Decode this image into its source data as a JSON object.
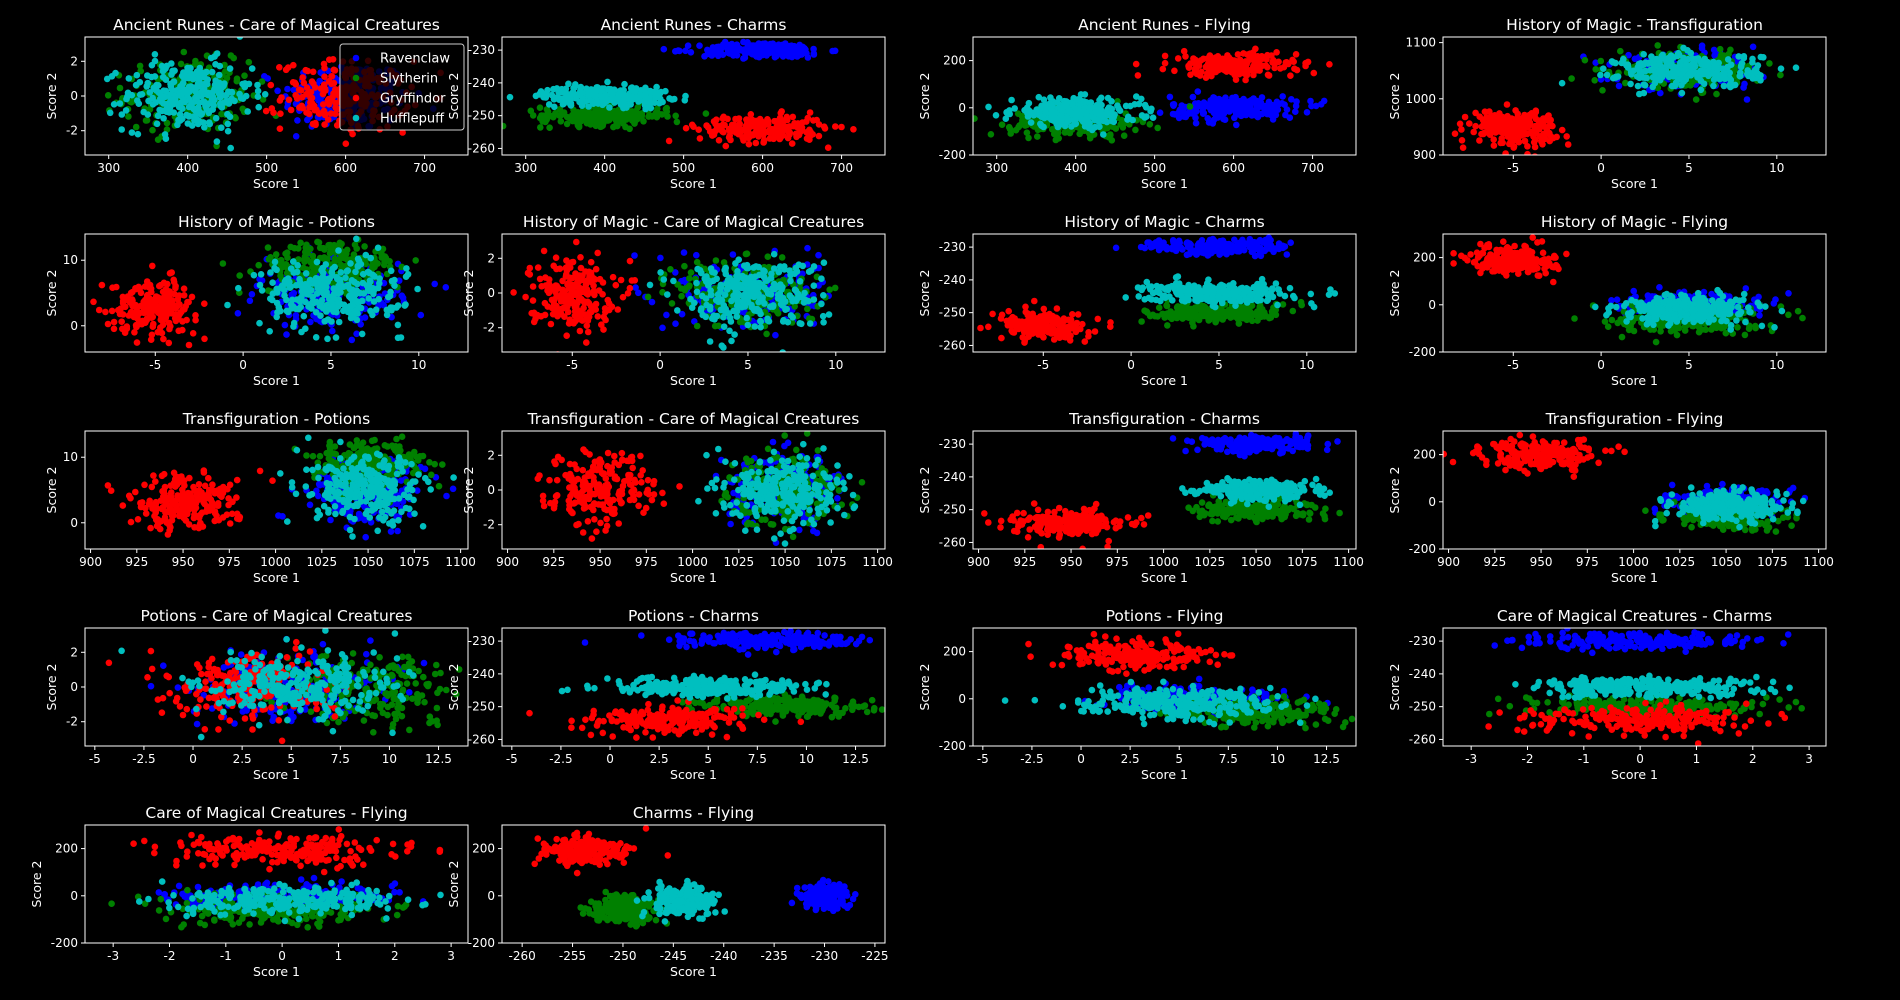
{
  "figure": {
    "background": "#000000",
    "foreground": "#ffffff"
  },
  "legend": {
    "placement": "upper-right of first panel",
    "entries": [
      {
        "name": "Ravenclaw",
        "color": "#0000ff"
      },
      {
        "name": "Slytherin",
        "color": "#008000"
      },
      {
        "name": "Gryffindor",
        "color": "#ff0000"
      },
      {
        "name": "Hufflepuff",
        "color": "#00bfbf"
      }
    ]
  },
  "chart_data": [
    {
      "type": "scatter",
      "title": "Ancient Runes - Care of Magical Creatures",
      "xlabel": "Score 1",
      "ylabel": "Score 2",
      "xlim": [
        270,
        755
      ],
      "ylim": [
        -3.4,
        3.4
      ],
      "xticks": [
        300,
        400,
        500,
        600,
        700
      ],
      "yticks": [
        -2,
        0,
        2
      ],
      "legend": true,
      "clusters": [
        {
          "house": 0,
          "cx": 600,
          "sx": 40,
          "cy": 0,
          "sy": 1,
          "n": 220
        },
        {
          "house": 1,
          "cx": 400,
          "sx": 40,
          "cy": 0,
          "sy": 1,
          "n": 220
        },
        {
          "house": 2,
          "cx": 600,
          "sx": 40,
          "cy": 0,
          "sy": 1,
          "n": 220
        },
        {
          "house": 3,
          "cx": 400,
          "sx": 40,
          "cy": 0,
          "sy": 1,
          "n": 280
        }
      ]
    },
    {
      "type": "scatter",
      "title": "Ancient Runes - Charms",
      "xlabel": "Score 1",
      "ylabel": "Score 2",
      "xlim": [
        270,
        755
      ],
      "ylim": [
        -262,
        -226
      ],
      "xticks": [
        300,
        400,
        500,
        600,
        700
      ],
      "yticks": [
        -260,
        -250,
        -240,
        -230
      ],
      "clusters": [
        {
          "house": 0,
          "cx": 600,
          "sx": 40,
          "cy": -230,
          "sy": 1.2,
          "n": 220
        },
        {
          "house": 1,
          "cx": 400,
          "sx": 40,
          "cy": -250,
          "sy": 1.5,
          "n": 220
        },
        {
          "house": 2,
          "cx": 600,
          "sx": 40,
          "cy": -254,
          "sy": 2,
          "n": 220
        },
        {
          "house": 3,
          "cx": 400,
          "sx": 40,
          "cy": -244,
          "sy": 1.5,
          "n": 280
        }
      ]
    },
    {
      "type": "scatter",
      "title": "Ancient Runes - Flying",
      "xlabel": "Score 1",
      "ylabel": "Score 2",
      "xlim": [
        270,
        755
      ],
      "ylim": [
        -200,
        300
      ],
      "xticks": [
        300,
        400,
        500,
        600,
        700
      ],
      "yticks": [
        -200,
        0,
        200
      ],
      "clusters": [
        {
          "house": 0,
          "cx": 600,
          "sx": 40,
          "cy": 0,
          "sy": 25,
          "n": 220
        },
        {
          "house": 1,
          "cx": 400,
          "sx": 40,
          "cy": -60,
          "sy": 30,
          "n": 220
        },
        {
          "house": 2,
          "cx": 600,
          "sx": 40,
          "cy": 180,
          "sy": 25,
          "n": 220
        },
        {
          "house": 3,
          "cx": 400,
          "sx": 40,
          "cy": -20,
          "sy": 30,
          "n": 280
        }
      ]
    },
    {
      "type": "scatter",
      "title": "History of Magic - Transfiguration",
      "xlabel": "Score 1",
      "ylabel": "Score 2",
      "xlim": [
        -9,
        12.8
      ],
      "ylim": [
        900,
        1110
      ],
      "xticks": [
        -5,
        0,
        5,
        10
      ],
      "yticks": [
        900,
        1000,
        1100
      ],
      "clusters": [
        {
          "house": 0,
          "cx": 5,
          "sx": 2,
          "cy": 1050,
          "sy": 15,
          "n": 220
        },
        {
          "house": 1,
          "cx": 5,
          "sx": 2,
          "cy": 1050,
          "sy": 15,
          "n": 220
        },
        {
          "house": 2,
          "cx": -5,
          "sx": 1.2,
          "cy": 950,
          "sy": 15,
          "n": 220
        },
        {
          "house": 3,
          "cx": 5,
          "sx": 2,
          "cy": 1050,
          "sy": 15,
          "n": 280
        }
      ]
    },
    {
      "type": "scatter",
      "title": "History of Magic - Potions",
      "xlabel": "Score 1",
      "ylabel": "Score 2",
      "xlim": [
        -9,
        12.8
      ],
      "ylim": [
        -4,
        14
      ],
      "xticks": [
        -5,
        0,
        5,
        10
      ],
      "yticks": [
        0,
        10
      ],
      "clusters": [
        {
          "house": 0,
          "cx": 5,
          "sx": 2,
          "cy": 5,
          "sy": 2.5,
          "n": 220
        },
        {
          "house": 1,
          "cx": 5,
          "sx": 2,
          "cy": 9,
          "sy": 2,
          "n": 220
        },
        {
          "house": 2,
          "cx": -5,
          "sx": 1.2,
          "cy": 3,
          "sy": 2,
          "n": 220
        },
        {
          "house": 3,
          "cx": 5,
          "sx": 2,
          "cy": 5,
          "sy": 2.5,
          "n": 280
        }
      ]
    },
    {
      "type": "scatter",
      "title": "History of Magic - Care of Magical Creatures",
      "xlabel": "Score 1",
      "ylabel": "Score 2",
      "xlim": [
        -9,
        12.8
      ],
      "ylim": [
        -3.4,
        3.4
      ],
      "xticks": [
        -5,
        0,
        5,
        10
      ],
      "yticks": [
        -2,
        0,
        2
      ],
      "clusters": [
        {
          "house": 0,
          "cx": 5,
          "sx": 2,
          "cy": 0,
          "sy": 1,
          "n": 220
        },
        {
          "house": 1,
          "cx": 5,
          "sx": 2,
          "cy": 0,
          "sy": 1,
          "n": 220
        },
        {
          "house": 2,
          "cx": -5,
          "sx": 1.2,
          "cy": 0,
          "sy": 1,
          "n": 220
        },
        {
          "house": 3,
          "cx": 5,
          "sx": 2,
          "cy": 0,
          "sy": 1,
          "n": 280
        }
      ]
    },
    {
      "type": "scatter",
      "title": "History of Magic - Charms",
      "xlabel": "Score 1",
      "ylabel": "Score 2",
      "xlim": [
        -9,
        12.8
      ],
      "ylim": [
        -262,
        -226
      ],
      "xticks": [
        -5,
        0,
        5,
        10
      ],
      "yticks": [
        -260,
        -250,
        -240,
        -230
      ],
      "clusters": [
        {
          "house": 0,
          "cx": 5,
          "sx": 2,
          "cy": -230,
          "sy": 1.2,
          "n": 220
        },
        {
          "house": 1,
          "cx": 5,
          "sx": 2,
          "cy": -250,
          "sy": 1.5,
          "n": 220
        },
        {
          "house": 2,
          "cx": -5,
          "sx": 1.2,
          "cy": -254,
          "sy": 2,
          "n": 220
        },
        {
          "house": 3,
          "cx": 5,
          "sx": 2,
          "cy": -244,
          "sy": 1.5,
          "n": 280
        }
      ]
    },
    {
      "type": "scatter",
      "title": "History of Magic - Flying",
      "xlabel": "Score 1",
      "ylabel": "Score 2",
      "xlim": [
        -9,
        12.8
      ],
      "ylim": [
        -200,
        300
      ],
      "xticks": [
        -5,
        0,
        5,
        10
      ],
      "yticks": [
        -200,
        0,
        200
      ],
      "clusters": [
        {
          "house": 0,
          "cx": 5,
          "sx": 2,
          "cy": 0,
          "sy": 25,
          "n": 220
        },
        {
          "house": 1,
          "cx": 5,
          "sx": 2,
          "cy": -60,
          "sy": 30,
          "n": 220
        },
        {
          "house": 2,
          "cx": -5,
          "sx": 1.2,
          "cy": 190,
          "sy": 30,
          "n": 220
        },
        {
          "house": 3,
          "cx": 5,
          "sx": 2,
          "cy": -20,
          "sy": 30,
          "n": 280
        }
      ]
    },
    {
      "type": "scatter",
      "title": "Transfiguration - Potions",
      "xlabel": "Score 1",
      "ylabel": "Score 2",
      "xlim": [
        897,
        1104
      ],
      "ylim": [
        -4,
        14
      ],
      "xticks": [
        900,
        925,
        950,
        975,
        1000,
        1025,
        1050,
        1075,
        1100
      ],
      "yticks": [
        0,
        10
      ],
      "clusters": [
        {
          "house": 0,
          "cx": 1050,
          "sx": 15,
          "cy": 5,
          "sy": 2.5,
          "n": 220
        },
        {
          "house": 1,
          "cx": 1050,
          "sx": 15,
          "cy": 9,
          "sy": 2,
          "n": 220
        },
        {
          "house": 2,
          "cx": 950,
          "sx": 15,
          "cy": 3,
          "sy": 2,
          "n": 220
        },
        {
          "house": 3,
          "cx": 1050,
          "sx": 15,
          "cy": 5,
          "sy": 2.5,
          "n": 280
        }
      ]
    },
    {
      "type": "scatter",
      "title": "Transfiguration - Care of Magical Creatures",
      "xlabel": "Score 1",
      "ylabel": "Score 2",
      "xlim": [
        897,
        1104
      ],
      "ylim": [
        -3.4,
        3.4
      ],
      "xticks": [
        900,
        925,
        950,
        975,
        1000,
        1025,
        1050,
        1075,
        1100
      ],
      "yticks": [
        -2,
        0,
        2
      ],
      "clusters": [
        {
          "house": 0,
          "cx": 1050,
          "sx": 15,
          "cy": 0,
          "sy": 1,
          "n": 220
        },
        {
          "house": 1,
          "cx": 1050,
          "sx": 15,
          "cy": 0,
          "sy": 1,
          "n": 220
        },
        {
          "house": 2,
          "cx": 950,
          "sx": 15,
          "cy": 0,
          "sy": 1,
          "n": 220
        },
        {
          "house": 3,
          "cx": 1050,
          "sx": 15,
          "cy": 0,
          "sy": 1,
          "n": 280
        }
      ]
    },
    {
      "type": "scatter",
      "title": "Transfiguration - Charms",
      "xlabel": "Score 1",
      "ylabel": "Score 2",
      "xlim": [
        897,
        1104
      ],
      "ylim": [
        -262,
        -226
      ],
      "xticks": [
        900,
        925,
        950,
        975,
        1000,
        1025,
        1050,
        1075,
        1100
      ],
      "yticks": [
        -260,
        -250,
        -240,
        -230
      ],
      "clusters": [
        {
          "house": 0,
          "cx": 1050,
          "sx": 15,
          "cy": -230,
          "sy": 1.2,
          "n": 220
        },
        {
          "house": 1,
          "cx": 1050,
          "sx": 15,
          "cy": -250,
          "sy": 1.5,
          "n": 220
        },
        {
          "house": 2,
          "cx": 950,
          "sx": 15,
          "cy": -254,
          "sy": 2,
          "n": 220
        },
        {
          "house": 3,
          "cx": 1050,
          "sx": 15,
          "cy": -244,
          "sy": 1.5,
          "n": 280
        }
      ]
    },
    {
      "type": "scatter",
      "title": "Transfiguration - Flying",
      "xlabel": "Score 1",
      "ylabel": "Score 2",
      "xlim": [
        897,
        1104
      ],
      "ylim": [
        -200,
        300
      ],
      "xticks": [
        900,
        925,
        950,
        975,
        1000,
        1025,
        1050,
        1075,
        1100
      ],
      "yticks": [
        -200,
        0,
        200
      ],
      "clusters": [
        {
          "house": 0,
          "cx": 1050,
          "sx": 15,
          "cy": 0,
          "sy": 25,
          "n": 220
        },
        {
          "house": 1,
          "cx": 1050,
          "sx": 15,
          "cy": -60,
          "sy": 30,
          "n": 220
        },
        {
          "house": 2,
          "cx": 950,
          "sx": 15,
          "cy": 200,
          "sy": 30,
          "n": 220
        },
        {
          "house": 3,
          "cx": 1050,
          "sx": 15,
          "cy": -20,
          "sy": 30,
          "n": 280
        }
      ]
    },
    {
      "type": "scatter",
      "title": "Potions - Care of Magical Creatures",
      "xlabel": "Score 1",
      "ylabel": "Score 2",
      "xlim": [
        -5.5,
        14
      ],
      "ylim": [
        -3.4,
        3.4
      ],
      "xticks": [
        -5,
        -2.5,
        0,
        2.5,
        5,
        7.5,
        10,
        12.5
      ],
      "yticks": [
        -2,
        0,
        2
      ],
      "clusters": [
        {
          "house": 0,
          "cx": 5,
          "sx": 2.5,
          "cy": 0,
          "sy": 1,
          "n": 220
        },
        {
          "house": 1,
          "cx": 9,
          "sx": 2,
          "cy": 0,
          "sy": 1,
          "n": 220
        },
        {
          "house": 2,
          "cx": 3,
          "sx": 2,
          "cy": 0,
          "sy": 1,
          "n": 220
        },
        {
          "house": 3,
          "cx": 5,
          "sx": 2.5,
          "cy": 0,
          "sy": 1,
          "n": 280
        }
      ]
    },
    {
      "type": "scatter",
      "title": "Potions - Charms",
      "xlabel": "Score 1",
      "ylabel": "Score 2",
      "xlim": [
        -5.5,
        14
      ],
      "ylim": [
        -262,
        -226
      ],
      "xticks": [
        -5,
        -2.5,
        0,
        2.5,
        5,
        7.5,
        10,
        12.5
      ],
      "yticks": [
        -260,
        -250,
        -240,
        -230
      ],
      "clusters": [
        {
          "house": 0,
          "cx": 8,
          "sx": 2.5,
          "cy": -230,
          "sy": 1.2,
          "n": 220
        },
        {
          "house": 1,
          "cx": 9,
          "sx": 2,
          "cy": -250,
          "sy": 1.5,
          "n": 220
        },
        {
          "house": 2,
          "cx": 3,
          "sx": 2,
          "cy": -254,
          "sy": 2,
          "n": 220
        },
        {
          "house": 3,
          "cx": 5,
          "sx": 2.5,
          "cy": -244,
          "sy": 1.5,
          "n": 280
        }
      ]
    },
    {
      "type": "scatter",
      "title": "Potions - Flying",
      "xlabel": "Score 1",
      "ylabel": "Score 2",
      "xlim": [
        -5.5,
        14
      ],
      "ylim": [
        -200,
        300
      ],
      "xticks": [
        -5,
        -2.5,
        0,
        2.5,
        5,
        7.5,
        10,
        12.5
      ],
      "yticks": [
        -200,
        0,
        200
      ],
      "clusters": [
        {
          "house": 0,
          "cx": 6,
          "sx": 2.5,
          "cy": 0,
          "sy": 25,
          "n": 220
        },
        {
          "house": 1,
          "cx": 9,
          "sx": 2,
          "cy": -60,
          "sy": 30,
          "n": 220
        },
        {
          "house": 2,
          "cx": 3,
          "sx": 2,
          "cy": 190,
          "sy": 30,
          "n": 220
        },
        {
          "house": 3,
          "cx": 5,
          "sx": 2.5,
          "cy": -20,
          "sy": 30,
          "n": 280
        }
      ]
    },
    {
      "type": "scatter",
      "title": "Care of Magical Creatures - Charms",
      "xlabel": "Score 1",
      "ylabel": "Score 2",
      "xlim": [
        -3.5,
        3.3
      ],
      "ylim": [
        -262,
        -226
      ],
      "xticks": [
        -3,
        -2,
        -1,
        0,
        1,
        2,
        3
      ],
      "yticks": [
        -260,
        -250,
        -240,
        -230
      ],
      "clusters": [
        {
          "house": 0,
          "cx": 0,
          "sx": 1,
          "cy": -230,
          "sy": 1.2,
          "n": 220
        },
        {
          "house": 1,
          "cx": 0,
          "sx": 1,
          "cy": -250,
          "sy": 1.5,
          "n": 220
        },
        {
          "house": 2,
          "cx": 0,
          "sx": 1,
          "cy": -254,
          "sy": 2,
          "n": 220
        },
        {
          "house": 3,
          "cx": 0,
          "sx": 1,
          "cy": -244,
          "sy": 1.5,
          "n": 280
        }
      ]
    },
    {
      "type": "scatter",
      "title": "Care of Magical Creatures - Flying",
      "xlabel": "Score 1",
      "ylabel": "Score 2",
      "xlim": [
        -3.5,
        3.3
      ],
      "ylim": [
        -200,
        300
      ],
      "xticks": [
        -3,
        -2,
        -1,
        0,
        1,
        2,
        3
      ],
      "yticks": [
        -200,
        0,
        200
      ],
      "clusters": [
        {
          "house": 0,
          "cx": 0,
          "sx": 1,
          "cy": 0,
          "sy": 25,
          "n": 220
        },
        {
          "house": 1,
          "cx": 0,
          "sx": 1,
          "cy": -60,
          "sy": 30,
          "n": 220
        },
        {
          "house": 2,
          "cx": 0,
          "sx": 1,
          "cy": 190,
          "sy": 30,
          "n": 220
        },
        {
          "house": 3,
          "cx": 0,
          "sx": 1,
          "cy": -20,
          "sy": 30,
          "n": 280
        }
      ]
    },
    {
      "type": "scatter",
      "title": "Charms - Flying",
      "xlabel": "Score 1",
      "ylabel": "Score 2",
      "xlim": [
        -262,
        -224
      ],
      "ylim": [
        -200,
        300
      ],
      "xticks": [
        -260,
        -255,
        -250,
        -245,
        -240,
        -235,
        -230,
        -225
      ],
      "yticks": [
        -200,
        0,
        200
      ],
      "clusters": [
        {
          "house": 0,
          "cx": -230,
          "sx": 1.2,
          "cy": 0,
          "sy": 25,
          "n": 220
        },
        {
          "house": 1,
          "cx": -250,
          "sx": 1.5,
          "cy": -60,
          "sy": 30,
          "n": 220
        },
        {
          "house": 2,
          "cx": -254,
          "sx": 2,
          "cy": 190,
          "sy": 30,
          "n": 220
        },
        {
          "house": 3,
          "cx": -244,
          "sx": 1.5,
          "cy": -20,
          "sy": 30,
          "n": 280
        }
      ]
    }
  ]
}
